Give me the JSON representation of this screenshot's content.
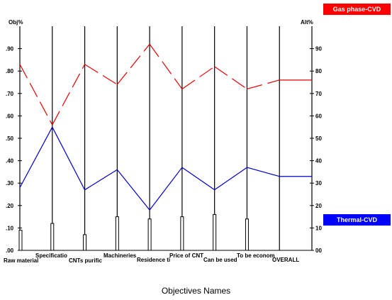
{
  "chart_data": {
    "type": "line",
    "title": "",
    "xlabel": "Objectives Names",
    "ylabel_left": "Obj%",
    "ylabel_right": "Alt%",
    "left_axis_ticks": [
      ".00",
      ".10",
      ".20",
      ".30",
      ".40",
      ".50",
      ".60",
      ".70",
      ".80",
      ".90"
    ],
    "right_axis_ticks": [
      "00",
      "10",
      "20",
      "30",
      "40",
      "50",
      "60",
      "70",
      "80",
      "90"
    ],
    "ylim": [
      0,
      1.0
    ],
    "categories": [
      "Raw material",
      "Specificatio",
      "CNTs purific",
      "Machineries",
      "Residence ti",
      "Price of CNT",
      "Can be used",
      "To be econom",
      "OVERALL"
    ],
    "objective_weights": [
      0.09,
      0.12,
      0.07,
      0.15,
      0.14,
      0.15,
      0.16,
      0.14,
      0
    ],
    "series": [
      {
        "name": "Gas phase-CVD",
        "color": "#e60000",
        "values": [
          0.83,
          0.56,
          0.83,
          0.74,
          0.92,
          0.72,
          0.82,
          0.72,
          0.76
        ],
        "dashed": true
      },
      {
        "name": "Thermal-CVD",
        "color": "#0000cc",
        "values": [
          0.28,
          0.55,
          0.27,
          0.36,
          0.18,
          0.37,
          0.27,
          0.37,
          0.33
        ],
        "dashed": false
      }
    ],
    "legend_placement": "right",
    "grid": false
  },
  "legend": {
    "gas_label": "Gas phase-CVD",
    "gas_color": "#ff0000",
    "thermal_label": "Thermal-CVD",
    "thermal_color": "#0000ff"
  }
}
